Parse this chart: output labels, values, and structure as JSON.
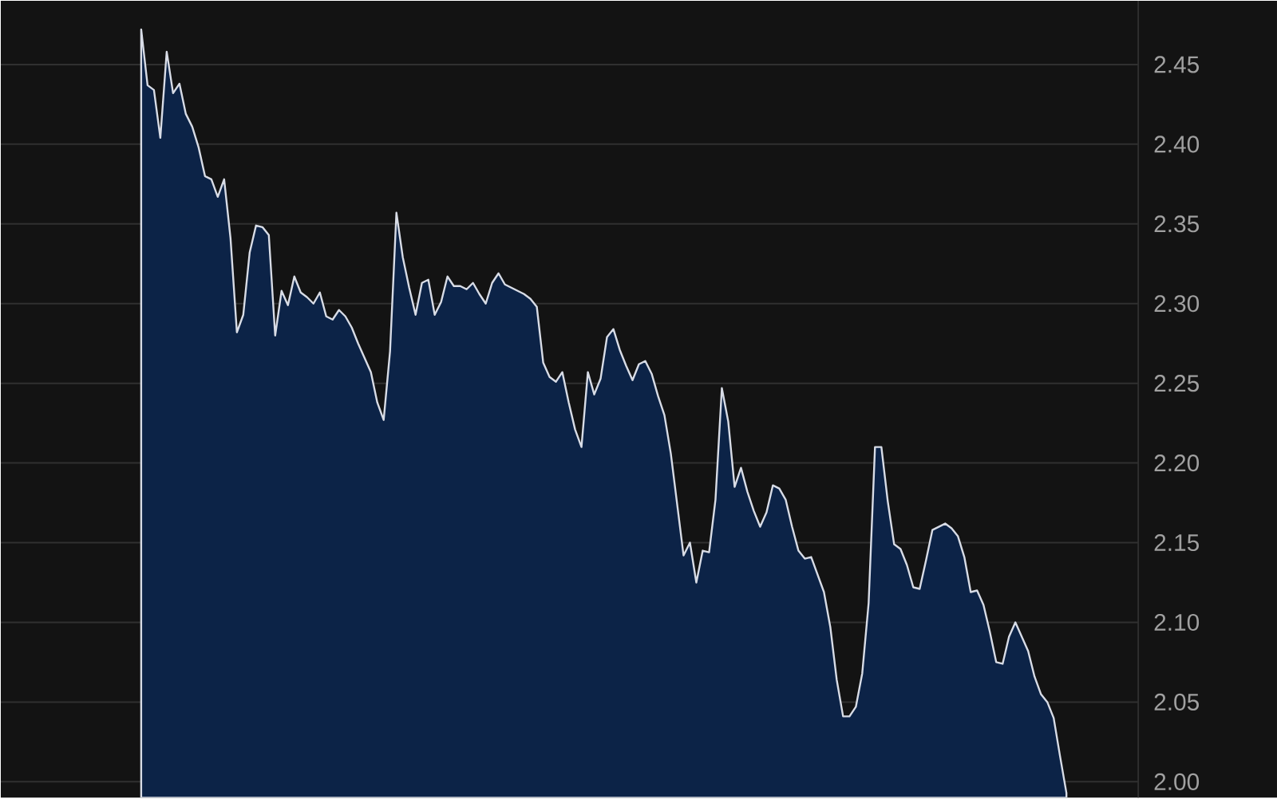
{
  "chart_data": {
    "type": "area",
    "color": "#0c2347",
    "grid": "y",
    "tick_labels": "y",
    "ylim": [
      1.99,
      2.49
    ],
    "yticks": [
      {
        "value": 2.0,
        "label": "2.00"
      },
      {
        "value": 2.05,
        "label": "2.05"
      },
      {
        "value": 2.1,
        "label": "2.10"
      },
      {
        "value": 2.15,
        "label": "2.15"
      },
      {
        "value": 2.2,
        "label": "2.20"
      },
      {
        "value": 2.25,
        "label": "2.25"
      },
      {
        "value": 2.3,
        "label": "2.30"
      },
      {
        "value": 2.35,
        "label": "2.35"
      },
      {
        "value": 2.4,
        "label": "2.40"
      },
      {
        "value": 2.45,
        "label": "2.45"
      }
    ],
    "categories": [
      null,
      null,
      null,
      null,
      null,
      null,
      null,
      null,
      null,
      null,
      null,
      null,
      null,
      null,
      null,
      null,
      null,
      null,
      null,
      null,
      null,
      null,
      null,
      null,
      null,
      null,
      null,
      null,
      null,
      null,
      null,
      null,
      null,
      null,
      null,
      null,
      null,
      null,
      null,
      null,
      null,
      null,
      null,
      null,
      null,
      null,
      null,
      null,
      null,
      null,
      null,
      null,
      null,
      null,
      null,
      null,
      null,
      null,
      null,
      null,
      null,
      null,
      null,
      null,
      null,
      null,
      null,
      null,
      null,
      null,
      null,
      null,
      null,
      null,
      null,
      null,
      null,
      null,
      null,
      null,
      null,
      null,
      null,
      null,
      null,
      null,
      null,
      null,
      null,
      null,
      null,
      null,
      null,
      null,
      null,
      null,
      null,
      null,
      null,
      null,
      null,
      null,
      null,
      null,
      null,
      null,
      null,
      null,
      null,
      null,
      null,
      null,
      null,
      null,
      null,
      null,
      null,
      null,
      null,
      null,
      null,
      null,
      null,
      null,
      null,
      null,
      null,
      null,
      null,
      null,
      null,
      null,
      null,
      null,
      null,
      null,
      null,
      null,
      null,
      null,
      null,
      null,
      null,
      null,
      null,
      null,
      null,
      null,
      null,
      null,
      null,
      null,
      null,
      null,
      null,
      null,
      null,
      null,
      null,
      null,
      null,
      null,
      null,
      null,
      null,
      null,
      null,
      null
    ],
    "values": [
      null,
      null,
      null,
      null,
      null,
      null,
      null,
      null,
      null,
      null,
      null,
      null,
      null,
      null,
      null,
      null,
      null,
      null,
      null,
      null,
      null,
      null,
      2.472,
      2.437,
      2.434,
      2.404,
      2.458,
      2.432,
      2.438,
      2.419,
      2.411,
      2.398,
      2.38,
      2.378,
      2.367,
      2.378,
      2.341,
      2.282,
      2.293,
      2.332,
      2.349,
      2.348,
      2.343,
      2.28,
      2.308,
      2.299,
      2.317,
      2.307,
      2.304,
      2.3,
      2.307,
      2.292,
      2.29,
      2.296,
      2.292,
      2.285,
      2.275,
      2.266,
      2.257,
      2.238,
      2.227,
      2.27,
      2.357,
      2.329,
      2.31,
      2.293,
      2.313,
      2.315,
      2.293,
      2.301,
      2.317,
      2.311,
      2.311,
      2.309,
      2.313,
      2.306,
      2.3,
      2.313,
      2.319,
      2.312,
      2.31,
      2.308,
      2.306,
      2.303,
      2.298,
      2.263,
      2.254,
      2.251,
      2.257,
      2.238,
      2.221,
      2.21,
      2.257,
      2.243,
      2.253,
      2.279,
      2.284,
      2.271,
      2.261,
      2.252,
      2.262,
      2.264,
      2.256,
      2.242,
      2.23,
      2.206,
      2.174,
      2.142,
      2.15,
      2.125,
      2.145,
      2.144,
      2.177,
      2.247,
      2.226,
      2.185,
      2.197,
      2.182,
      2.17,
      2.16,
      2.169,
      2.186,
      2.184,
      2.177,
      2.16,
      2.145,
      2.14,
      2.141,
      2.13,
      2.119,
      2.097,
      2.064,
      2.041,
      2.041,
      2.047,
      2.068,
      2.112,
      2.21,
      2.21,
      2.176,
      2.149,
      2.146,
      2.136,
      2.122,
      2.121,
      2.139,
      2.158,
      2.16,
      2.162,
      2.159,
      2.154,
      2.141,
      2.119,
      2.12,
      2.111,
      2.094,
      2.075,
      2.074,
      2.091,
      2.1,
      2.091,
      2.082,
      2.066,
      2.055,
      2.05,
      2.04,
      2.016,
      1.993
    ]
  }
}
